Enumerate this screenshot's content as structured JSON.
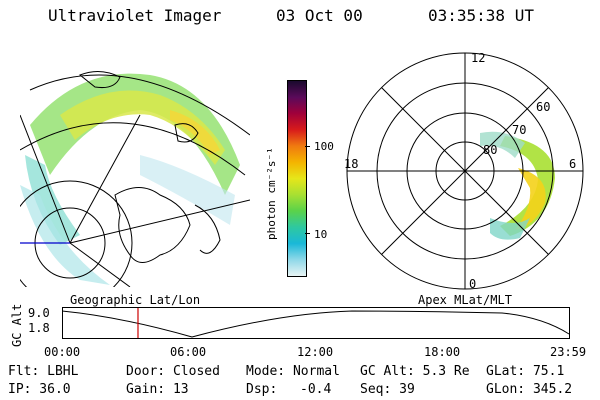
{
  "header": {
    "title": "Ultraviolet Imager",
    "date": "03 Oct 00",
    "time": "03:35:38 UT"
  },
  "panels": {
    "left_label": "Geographic Lat/Lon",
    "right_label": "Apex MLat/MLT"
  },
  "colorbar": {
    "unit_label": "photon cm⁻²s⁻¹",
    "tick_high": "100",
    "tick_low": "10",
    "colors": [
      "#1a0a2e",
      "#5a0a5a",
      "#a0003a",
      "#d81b1b",
      "#f07a10",
      "#f4b400",
      "#e6e61a",
      "#a8e032",
      "#5ad24a",
      "#2ec8a0",
      "#1ab8d8",
      "#8fd8e8",
      "#e8f4f4"
    ]
  },
  "polar": {
    "mlt_labels": {
      "top": "12",
      "left": "18",
      "right": "6",
      "bottom": "0"
    },
    "lat_labels": [
      "60",
      "70",
      "80"
    ]
  },
  "timeline": {
    "ylabel": "GC Alt",
    "ymax": "9.0",
    "ymin": "1.8",
    "x_ticks": [
      "00:00",
      "06:00",
      "12:00",
      "18:00",
      "23:59"
    ],
    "marker_time_h": 3.59,
    "marker_color": "#cc0000"
  },
  "info": {
    "flt": "Flt: LBHL",
    "door": "Door: Closed",
    "mode": "Mode: Normal",
    "gc_alt": "GC Alt: 5.3 Re",
    "glat": "GLat: 75.1",
    "ip": "IP: 36.0",
    "gain": "Gain: 13",
    "dsp_label": "Dsp:",
    "dsp_value": "-0.4",
    "seq": "Seq: 39",
    "glon": "GLon: 345.2"
  }
}
